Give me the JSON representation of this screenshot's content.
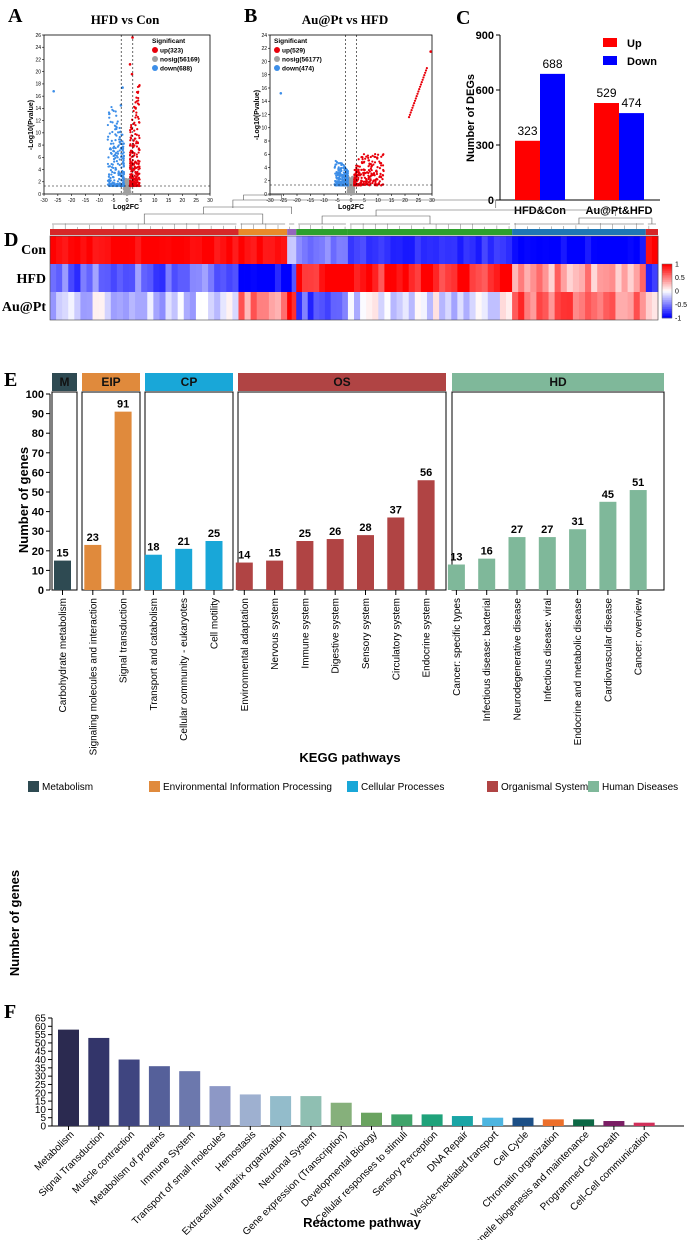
{
  "panel_letters": [
    "A",
    "B",
    "C",
    "D",
    "E",
    "F"
  ],
  "chart_data": [
    {
      "id": "A",
      "type": "scatter",
      "title": "HFD vs Con",
      "xlabel": "Log2FC",
      "ylabel": "-Log10(Pvalue)",
      "xlim": [
        -30,
        30
      ],
      "ylim": [
        0,
        26
      ],
      "xticks": [
        -30,
        -25,
        -20,
        -15,
        -10,
        -5,
        0,
        5,
        10,
        15,
        20,
        25,
        30
      ],
      "yticks": [
        0,
        2,
        4,
        6,
        8,
        10,
        12,
        14,
        16,
        18,
        20,
        22,
        24,
        26
      ],
      "legend_title": "Significant",
      "legend": [
        {
          "label": "up(323)",
          "color": "#e8000b"
        },
        {
          "label": "nosig(56169)",
          "color": "#a0a0a0"
        },
        {
          "label": "down(688)",
          "color": "#3d8ee8"
        }
      ],
      "thresholds": {
        "log2fc": [
          -1,
          1
        ],
        "pvalue_line": 1.3
      },
      "highlight_points": [
        {
          "x": -26.5,
          "y": 16.8,
          "group": "down"
        },
        {
          "x": 2.0,
          "y": 25.6,
          "group": "up"
        },
        {
          "x": 1.1,
          "y": 21.2,
          "group": "up"
        },
        {
          "x": 1.8,
          "y": 19.6,
          "group": "up"
        },
        {
          "x": -1.6,
          "y": 17.4,
          "group": "down"
        },
        {
          "x": -2.2,
          "y": 14.5,
          "group": "down"
        }
      ]
    },
    {
      "id": "B",
      "type": "scatter",
      "title": "Au@Pt vs HFD",
      "xlabel": "Log2FC",
      "ylabel": "-Log10(Pvalue)",
      "xlim": [
        -30,
        30
      ],
      "ylim": [
        0,
        24
      ],
      "xticks": [
        -30,
        -25,
        -20,
        -15,
        -10,
        -5,
        0,
        5,
        10,
        15,
        20,
        25,
        30
      ],
      "yticks": [
        0,
        2,
        4,
        6,
        8,
        10,
        12,
        14,
        16,
        18,
        20,
        22,
        24
      ],
      "legend_title": "Significant",
      "legend": [
        {
          "label": "up(529)",
          "color": "#e8000b"
        },
        {
          "label": "nosig(56177)",
          "color": "#a0a0a0"
        },
        {
          "label": "down(474)",
          "color": "#3d8ee8"
        }
      ],
      "thresholds": {
        "log2fc": [
          -1,
          1
        ],
        "pvalue_line": 1.3
      },
      "highlight_points": [
        {
          "x": -26.0,
          "y": 15.2,
          "group": "down"
        },
        {
          "x": 29.5,
          "y": 21.5,
          "group": "up"
        }
      ]
    },
    {
      "id": "C",
      "type": "bar",
      "ylabel": "Number of DEGs",
      "categories": [
        "HFD&Con",
        "Au@Pt&HFD"
      ],
      "series": [
        {
          "name": "Up",
          "color": "#ff0000",
          "values": [
            323,
            529
          ]
        },
        {
          "name": "Down",
          "color": "#0000ff",
          "values": [
            688,
            474
          ]
        }
      ],
      "ylim": [
        0,
        900
      ],
      "yticks": [
        0,
        300,
        600,
        900
      ]
    },
    {
      "id": "D",
      "type": "heatmap",
      "rows": [
        "Con",
        "HFD",
        "Au@Pt"
      ],
      "colorbar_ticks": [
        "1",
        "0.5",
        "0",
        "-0.5",
        "-1"
      ],
      "colorbar_values": [
        1,
        0.5,
        0,
        -0.5,
        -1
      ],
      "cluster_colors": [
        "#d62728",
        "#e88a2a",
        "#2f6fd0",
        "#2ca02c",
        "#1f77b4",
        "#d62728",
        "#9467bd"
      ],
      "column_groups": [
        {
          "span": 0.31,
          "pattern": [
            1,
            -0.6,
            -0.2
          ],
          "cluster": "#d62728"
        },
        {
          "span": 0.08,
          "pattern": [
            1,
            -1,
            0.5
          ],
          "cluster": "#e88a2a"
        },
        {
          "span": 0.015,
          "pattern": [
            -0.2,
            -0.8,
            0.9
          ],
          "cluster": "#9467bd"
        },
        {
          "span": 0.085,
          "pattern": [
            -0.5,
            1,
            -0.7
          ],
          "cluster": "#2ca02c"
        },
        {
          "span": 0.27,
          "pattern": [
            -0.8,
            0.9,
            -0.1
          ],
          "cluster": "#2ca02c"
        },
        {
          "span": 0.22,
          "pattern": [
            -1,
            0.4,
            0.6
          ],
          "cluster": "#1f77b4"
        },
        {
          "span": 0.02,
          "pattern": [
            0.9,
            -0.8,
            0.3
          ],
          "cluster": "#d62728"
        }
      ]
    },
    {
      "id": "E",
      "type": "bar",
      "xlabel": "KEGG pathways",
      "ylabel": "Number of genes",
      "ylim": [
        0,
        100
      ],
      "yticks": [
        0,
        10,
        20,
        30,
        40,
        50,
        60,
        70,
        80,
        90,
        100
      ],
      "groups": [
        {
          "abbr": "M",
          "name": "Metabolism",
          "color": "#2e4a52",
          "categories": [
            "Carbohydrate metabolism"
          ],
          "values": [
            15
          ]
        },
        {
          "abbr": "EIP",
          "name": "Environmental Information Processing",
          "color": "#e08a3c",
          "categories": [
            "Signaling molecules and interaction",
            "Signal transduction"
          ],
          "values": [
            23,
            91
          ]
        },
        {
          "abbr": "CP",
          "name": "Cellular Processes",
          "color": "#19a7d8",
          "categories": [
            "Transport and catabolism",
            "Cellular community - eukaryotes",
            "Cell motility"
          ],
          "values": [
            18,
            21,
            25
          ]
        },
        {
          "abbr": "OS",
          "name": "Organismal Systems",
          "color": "#b04444",
          "categories": [
            "Environmental adaptation",
            "Nervous system",
            "Immune system",
            "Digestive system",
            "Sensory system",
            "Circulatory system",
            "Endocrine system"
          ],
          "values": [
            14,
            15,
            25,
            26,
            28,
            37,
            56
          ]
        },
        {
          "abbr": "HD",
          "name": "Human Diseases",
          "color": "#7fb89a",
          "categories": [
            "Cancer: specific types",
            "Infectious disease: bacterial",
            "Neurodegenerative disease",
            "Infectious disease: viral",
            "Endocrine and metabolic disease",
            "Cardiovascular disease",
            "Cancer: overview"
          ],
          "values": [
            13,
            16,
            27,
            27,
            31,
            45,
            51
          ]
        }
      ]
    },
    {
      "id": "F",
      "type": "bar",
      "xlabel": "Reactome pathway",
      "ylabel": "Number of genes",
      "ylim": [
        0,
        65
      ],
      "yticks": [
        0,
        5,
        10,
        15,
        20,
        25,
        30,
        35,
        40,
        45,
        50,
        55,
        60,
        65
      ],
      "categories": [
        "Metabolism",
        "Signal Transduction",
        "Muscle contraction",
        "Metabolism of proteins",
        "Immune System",
        "Transport of small molecules",
        "Hemostasis",
        "Extracellular matrix organization",
        "Neuronal System",
        "Gene expression (Transcription)",
        "Developmental Biology",
        "Cellular responses to stimuli",
        "Sensory Perception",
        "DNA Repair",
        "Vesicle-mediated transport",
        "Cell Cycle",
        "Chromatin organization",
        "Organelle biogenesis and maintenance",
        "Programmed Cell Death",
        "Cell-Cell communication"
      ],
      "values": [
        58,
        53,
        40,
        36,
        33,
        24,
        19,
        18,
        18,
        14,
        8,
        7,
        7,
        6,
        5,
        5,
        4,
        4,
        3,
        2
      ],
      "colors": [
        "#2b2a50",
        "#33356a",
        "#3f4580",
        "#55609a",
        "#6c78ad",
        "#8d98c6",
        "#9eb0d0",
        "#93bccb",
        "#8fbfb2",
        "#86b07b",
        "#6aa360",
        "#3fa36a",
        "#1fa27a",
        "#1aa5a5",
        "#4db5e0",
        "#1c4f86",
        "#ec6f2a",
        "#0d6845",
        "#7a1e64",
        "#d0305a"
      ]
    }
  ]
}
